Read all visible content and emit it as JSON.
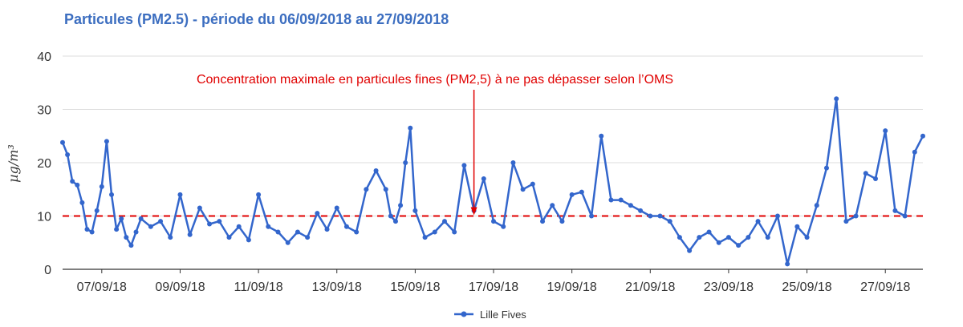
{
  "chart_data": {
    "type": "line",
    "title": "Particules (PM2.5) - période du 06/09/2018 au 27/09/2018",
    "xlabel": "",
    "ylabel": "µg/m³",
    "ylim": [
      0,
      40
    ],
    "yticks": [
      0,
      10,
      20,
      30,
      40
    ],
    "xlim": [
      "2018-09-06T00:00",
      "2018-09-27T23:00"
    ],
    "xtick_labels": [
      "07/09/18",
      "09/09/18",
      "11/09/18",
      "13/09/18",
      "15/09/18",
      "17/09/18",
      "19/09/18",
      "21/09/18",
      "23/09/18",
      "25/09/18",
      "27/09/18"
    ],
    "xtick_dates": [
      "2018-09-07",
      "2018-09-09",
      "2018-09-11",
      "2018-09-13",
      "2018-09-15",
      "2018-09-17",
      "2018-09-19",
      "2018-09-21",
      "2018-09-23",
      "2018-09-25",
      "2018-09-27"
    ],
    "grid": "horizontal",
    "legend_position": "bottom",
    "colors": {
      "series": "#3366cc",
      "threshold": "#e00000",
      "grid": "#dddddd",
      "axis": "#333333"
    },
    "series": [
      {
        "name": "Lille Fives",
        "x": [
          "2018-09-06T00:00",
          "2018-09-06T03:00",
          "2018-09-06T06:00",
          "2018-09-06T09:00",
          "2018-09-06T12:00",
          "2018-09-06T15:00",
          "2018-09-06T18:00",
          "2018-09-06T21:00",
          "2018-09-07T00:00",
          "2018-09-07T03:00",
          "2018-09-07T06:00",
          "2018-09-07T09:00",
          "2018-09-07T12:00",
          "2018-09-07T15:00",
          "2018-09-07T18:00",
          "2018-09-07T21:00",
          "2018-09-08T00:00",
          "2018-09-08T06:00",
          "2018-09-08T12:00",
          "2018-09-08T18:00",
          "2018-09-09T00:00",
          "2018-09-09T06:00",
          "2018-09-09T12:00",
          "2018-09-09T18:00",
          "2018-09-10T00:00",
          "2018-09-10T06:00",
          "2018-09-10T12:00",
          "2018-09-10T18:00",
          "2018-09-11T00:00",
          "2018-09-11T06:00",
          "2018-09-11T12:00",
          "2018-09-11T18:00",
          "2018-09-12T00:00",
          "2018-09-12T06:00",
          "2018-09-12T12:00",
          "2018-09-12T18:00",
          "2018-09-13T00:00",
          "2018-09-13T06:00",
          "2018-09-13T12:00",
          "2018-09-13T18:00",
          "2018-09-14T00:00",
          "2018-09-14T06:00",
          "2018-09-14T09:00",
          "2018-09-14T12:00",
          "2018-09-14T15:00",
          "2018-09-14T18:00",
          "2018-09-14T21:00",
          "2018-09-15T00:00",
          "2018-09-15T06:00",
          "2018-09-15T12:00",
          "2018-09-15T18:00",
          "2018-09-16T00:00",
          "2018-09-16T06:00",
          "2018-09-16T12:00",
          "2018-09-16T18:00",
          "2018-09-17T00:00",
          "2018-09-17T06:00",
          "2018-09-17T12:00",
          "2018-09-17T18:00",
          "2018-09-18T00:00",
          "2018-09-18T06:00",
          "2018-09-18T12:00",
          "2018-09-18T18:00",
          "2018-09-19T00:00",
          "2018-09-19T06:00",
          "2018-09-19T12:00",
          "2018-09-19T18:00",
          "2018-09-20T00:00",
          "2018-09-20T06:00",
          "2018-09-20T12:00",
          "2018-09-20T18:00",
          "2018-09-21T00:00",
          "2018-09-21T06:00",
          "2018-09-21T12:00",
          "2018-09-21T18:00",
          "2018-09-22T00:00",
          "2018-09-22T06:00",
          "2018-09-22T12:00",
          "2018-09-22T18:00",
          "2018-09-23T00:00",
          "2018-09-23T06:00",
          "2018-09-23T12:00",
          "2018-09-23T18:00",
          "2018-09-24T00:00",
          "2018-09-24T06:00",
          "2018-09-24T12:00",
          "2018-09-24T18:00",
          "2018-09-25T00:00",
          "2018-09-25T06:00",
          "2018-09-25T12:00",
          "2018-09-25T18:00",
          "2018-09-26T00:00",
          "2018-09-26T06:00",
          "2018-09-26T12:00",
          "2018-09-26T18:00",
          "2018-09-27T00:00",
          "2018-09-27T06:00",
          "2018-09-27T12:00",
          "2018-09-27T18:00",
          "2018-09-27T23:00"
        ],
        "values": [
          23.8,
          21.5,
          16.5,
          15.8,
          12.5,
          7.5,
          7.0,
          11.0,
          15.5,
          24.0,
          14.0,
          7.5,
          9.5,
          6.0,
          4.5,
          7.0,
          9.5,
          8.0,
          9.0,
          6.0,
          14.0,
          6.5,
          11.5,
          8.5,
          9.0,
          6.0,
          8.0,
          5.5,
          14.0,
          8.0,
          7.0,
          5.0,
          7.0,
          6.0,
          10.5,
          7.5,
          11.5,
          8.0,
          7.0,
          15.0,
          18.5,
          15.0,
          10.0,
          9.0,
          12.0,
          20.0,
          26.5,
          11.0,
          6.0,
          7.0,
          9.0,
          7.0,
          19.5,
          11.0,
          17.0,
          9.0,
          8.0,
          20.0,
          15.0,
          16.0,
          9.0,
          12.0,
          9.0,
          14.0,
          14.5,
          10.0,
          25.0,
          13.0,
          13.0,
          12.0,
          11.0,
          10.0,
          10.0,
          9.0,
          6.0,
          3.5,
          6.0,
          7.0,
          5.0,
          6.0,
          4.5,
          6.0,
          9.0,
          6.0,
          10.0,
          1.0,
          8.0,
          6.0,
          12.0,
          19.0,
          32.0,
          9.0,
          10.0,
          18.0,
          17.0,
          26.0,
          11.0,
          10.0,
          22.0,
          25.0
        ]
      }
    ],
    "reference_line": {
      "value": 10,
      "label": "Concentration maximale en particules fines (PM2,5) à ne pas dépasser selon l’OMS",
      "arrow_at": "2018-09-16T12:00"
    }
  }
}
